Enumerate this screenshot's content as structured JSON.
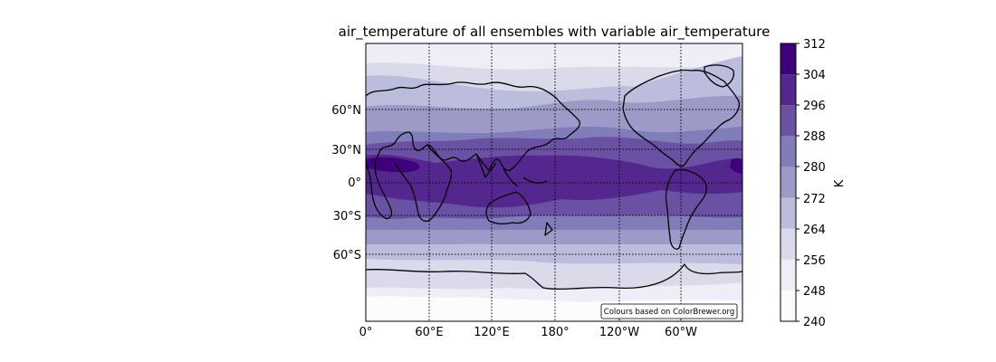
{
  "title": "air_temperature of all ensembles with variable air_temperature",
  "credit": "Colours based on ColorBrewer.org",
  "map": {
    "projection": "PlateCarree",
    "central_longitude": 180,
    "gridlines": "dotted",
    "coastlines": true,
    "lon_ticks": [
      "0°",
      "60°E",
      "120°E",
      "180°",
      "120°W",
      "60°W"
    ],
    "lat_ticks": [
      "60°N",
      "30°N",
      "0°",
      "30°S",
      "60°S"
    ],
    "lat_tick_values": [
      60,
      30,
      0,
      -30,
      -60
    ]
  },
  "colorbar": {
    "label": "K",
    "ticks": [
      "312",
      "304",
      "296",
      "288",
      "280",
      "272",
      "264",
      "256",
      "248",
      "240"
    ],
    "levels": [
      240,
      248,
      256,
      264,
      272,
      280,
      288,
      296,
      304,
      312
    ],
    "colors": [
      "#fcfbfd",
      "#efedf5",
      "#dadaeb",
      "#bcbddc",
      "#9e9ac8",
      "#807dba",
      "#6a51a3",
      "#54278f",
      "#3f007d"
    ]
  }
}
